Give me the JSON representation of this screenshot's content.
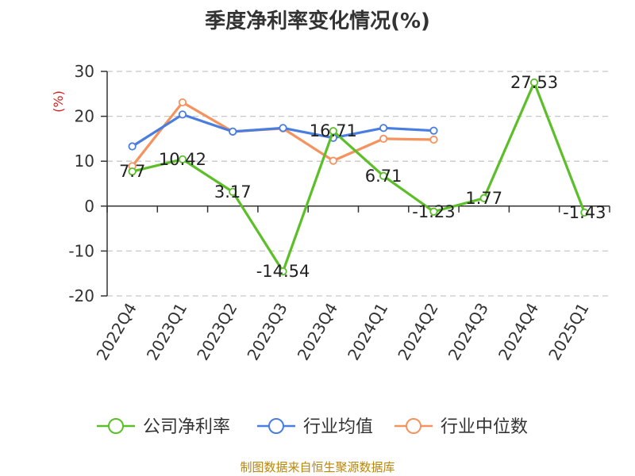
{
  "chart_data": {
    "type": "line",
    "title": "季度净利率变化情况(%)",
    "ylabel": "(%)",
    "xlabel": "",
    "categories": [
      "2022Q4",
      "2023Q1",
      "2023Q2",
      "2023Q3",
      "2023Q4",
      "2024Q1",
      "2024Q2",
      "2024Q3",
      "2024Q4",
      "2025Q1"
    ],
    "ylim": [
      -20,
      30
    ],
    "yticks": [
      -20,
      -10,
      0,
      10,
      20,
      30
    ],
    "grid": true,
    "legend": "bottom",
    "series": [
      {
        "name": "公司净利率",
        "color": "#5cbf2a",
        "values": [
          7.7,
          10.42,
          3.17,
          -14.54,
          16.71,
          6.71,
          -1.23,
          1.77,
          27.53,
          -1.43
        ],
        "labels": [
          "7.7",
          "10.42",
          "3.17",
          "-14.54",
          "16.71",
          "6.71",
          "-1.23",
          "1.77",
          "27.53",
          "-1.43"
        ]
      },
      {
        "name": "行业均值",
        "color": "#4a7de0",
        "values": [
          13.3,
          20.4,
          16.6,
          17.4,
          15.2,
          17.4,
          16.8,
          null,
          null,
          null
        ]
      },
      {
        "name": "行业中位数",
        "color": "#f5925e",
        "values": [
          8.9,
          23.1,
          16.6,
          17.3,
          10.1,
          15.0,
          14.8,
          null,
          null,
          null
        ]
      }
    ]
  },
  "source": "制图数据来自恒生聚源数据库"
}
